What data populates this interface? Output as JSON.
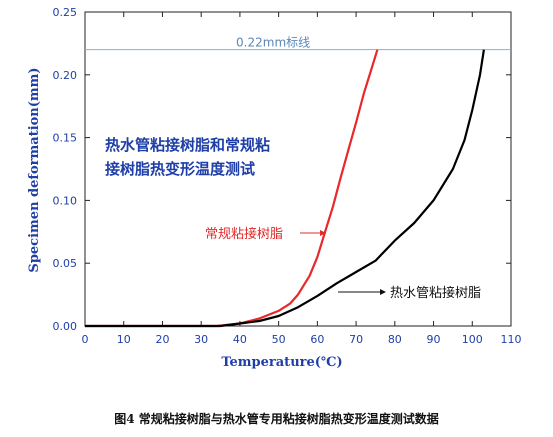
{
  "caption": "图4 常规粘接树脂与热水管专用粘接树脂热变形温度测试数据",
  "chart_data": {
    "type": "line",
    "xlabel": "Temperature(℃)",
    "ylabel": "Specimen deformation(mm)",
    "xlim": [
      0,
      110
    ],
    "ylim": [
      0,
      0.25
    ],
    "xticks": [
      0,
      10,
      20,
      30,
      40,
      50,
      60,
      70,
      80,
      90,
      100,
      110
    ],
    "yticks": [
      0.0,
      0.05,
      0.1,
      0.15,
      0.2,
      0.25
    ],
    "grid": false,
    "reference_line": {
      "y": 0.22,
      "label": "0.22mm标线",
      "color": "#7fb2e0"
    },
    "annotation_block": [
      "热水管粘接树脂和常规粘",
      "接树脂热变形温度测试"
    ],
    "series": [
      {
        "name": "常规粘接树脂",
        "color": "#e8282b",
        "x": [
          0,
          34,
          40,
          45,
          50,
          53,
          55,
          58,
          60,
          62,
          64,
          66,
          68,
          70,
          72,
          74,
          75.5
        ],
        "y": [
          0,
          0,
          0.002,
          0.006,
          0.012,
          0.018,
          0.025,
          0.04,
          0.055,
          0.075,
          0.095,
          0.118,
          0.14,
          0.162,
          0.185,
          0.205,
          0.22
        ]
      },
      {
        "name": "热水管粘接树脂",
        "color": "#000000",
        "x": [
          0,
          35,
          40,
          45,
          50,
          55,
          60,
          65,
          70,
          75,
          80,
          85,
          90,
          95,
          98,
          100,
          102,
          103
        ],
        "y": [
          0,
          0,
          0.002,
          0.004,
          0.008,
          0.015,
          0.024,
          0.034,
          0.043,
          0.052,
          0.068,
          0.082,
          0.1,
          0.125,
          0.148,
          0.172,
          0.2,
          0.22
        ]
      }
    ],
    "series_labels": [
      {
        "text": "常规粘接树脂",
        "series": 0
      },
      {
        "text": "热水管粘接树脂",
        "series": 1
      }
    ]
  }
}
